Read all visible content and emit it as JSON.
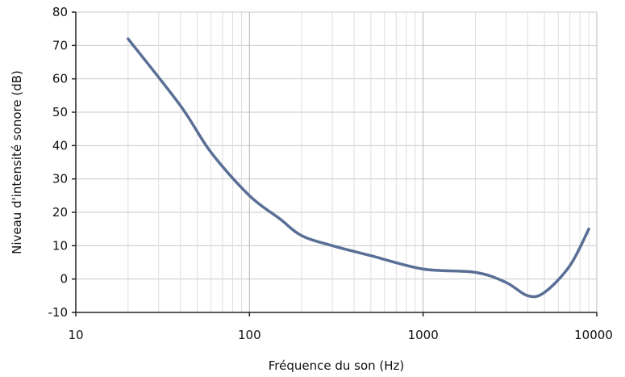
{
  "chart_data": {
    "type": "line",
    "x_scale": "log",
    "grid": true,
    "xlabel": "Fréquence du son  (Hz)",
    "ylabel": "Niveau d'intensité sonore (dB)",
    "xlim": [
      10,
      10000
    ],
    "ylim": [
      -10,
      80
    ],
    "x_ticks": [
      10,
      100,
      1000,
      10000
    ],
    "y_ticks": [
      -10,
      0,
      10,
      20,
      30,
      40,
      50,
      60,
      70,
      80
    ],
    "series": [
      {
        "color": "#5a6f96",
        "points": [
          {
            "x": 20,
            "y": 72
          },
          {
            "x": 40,
            "y": 52
          },
          {
            "x": 60,
            "y": 38
          },
          {
            "x": 100,
            "y": 25
          },
          {
            "x": 150,
            "y": 18
          },
          {
            "x": 200,
            "y": 13
          },
          {
            "x": 300,
            "y": 10
          },
          {
            "x": 500,
            "y": 7
          },
          {
            "x": 1000,
            "y": 3
          },
          {
            "x": 2000,
            "y": 2
          },
          {
            "x": 3000,
            "y": -1
          },
          {
            "x": 4000,
            "y": -5
          },
          {
            "x": 5000,
            "y": -4
          },
          {
            "x": 7000,
            "y": 4
          },
          {
            "x": 9000,
            "y": 15
          }
        ]
      }
    ]
  }
}
